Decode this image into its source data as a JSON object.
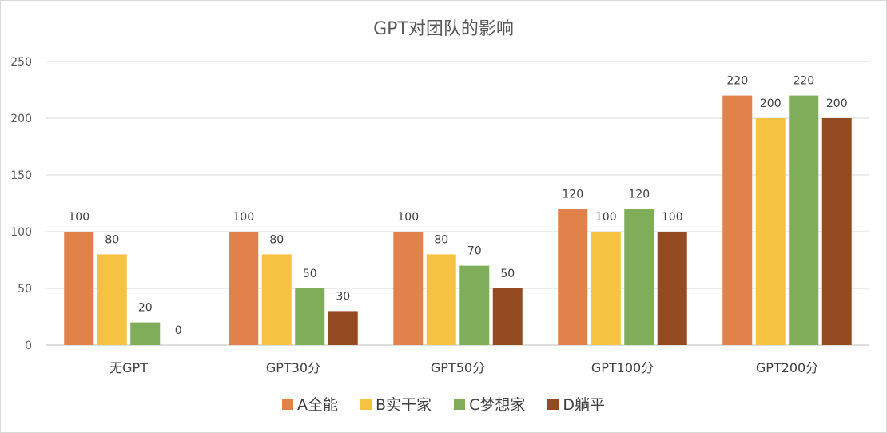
{
  "chart_data": {
    "type": "bar",
    "title": "GPT对团队的影响",
    "categories": [
      "无GPT",
      "GPT30分",
      "GPT50分",
      "GPT100分",
      "GPT200分"
    ],
    "series": [
      {
        "name": "A全能",
        "color": "#E0824A",
        "values": [
          100,
          100,
          100,
          120,
          220
        ]
      },
      {
        "name": "B实干家",
        "color": "#F5C242",
        "values": [
          80,
          80,
          80,
          100,
          200
        ]
      },
      {
        "name": "C梦想家",
        "color": "#7FAD59",
        "values": [
          20,
          50,
          70,
          120,
          220
        ]
      },
      {
        "name": "D躺平",
        "color": "#954B22",
        "values": [
          0,
          30,
          50,
          100,
          200
        ]
      }
    ],
    "ylim": [
      0,
      250
    ],
    "yticks": [
      0,
      50,
      100,
      150,
      200,
      250
    ],
    "grid": true,
    "legend_position": "bottom",
    "data_labels": true
  }
}
